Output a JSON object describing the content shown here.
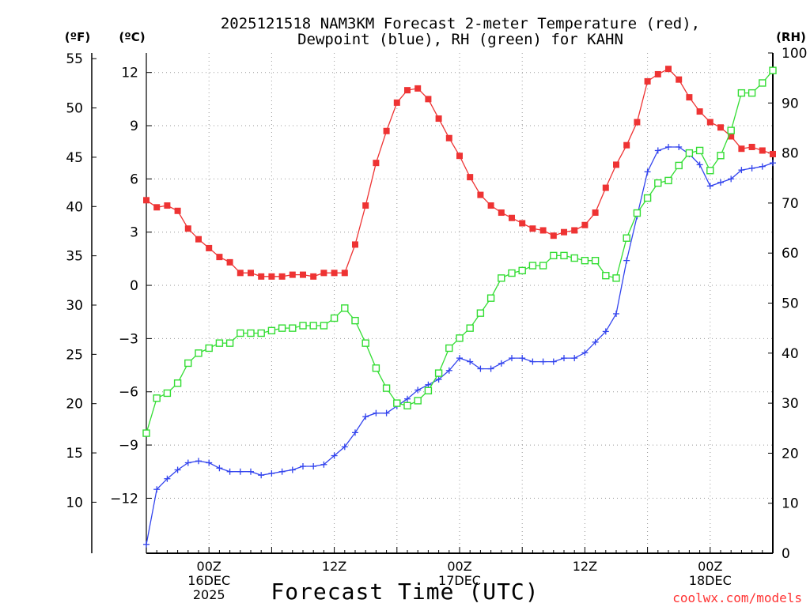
{
  "chart_data": {
    "type": "line",
    "title": [
      "2025121518 NAM3KM Forecast 2-meter Temperature (red),",
      "Dewpoint (blue), RH (green) for KAHN"
    ],
    "xlabel": "Forecast Time (UTC)",
    "credit": "coolwx.com/models",
    "units": {
      "fahrenheit": "(ºF)",
      "celsius": "(ºC)",
      "rh": "(RH)"
    },
    "x_range_hours": [
      18,
      78
    ],
    "celsius_axis": {
      "ylim": [
        -15.1,
        13.1
      ],
      "ticks": [
        -12,
        -9,
        -6,
        -3,
        0,
        3,
        6,
        9,
        12
      ],
      "labels": [
        "−12",
        "−9",
        "−6",
        "−3",
        "0",
        "3",
        "6",
        "9",
        "12"
      ]
    },
    "fahrenheit_axis": {
      "ticks": [
        10,
        15,
        20,
        25,
        30,
        35,
        40,
        45,
        50,
        55
      ],
      "labels": [
        "10",
        "15",
        "20",
        "25",
        "30",
        "35",
        "40",
        "45",
        "50",
        "55"
      ]
    },
    "rh_axis": {
      "ylim": [
        0,
        100
      ],
      "ticks": [
        0,
        10,
        20,
        30,
        40,
        50,
        60,
        70,
        80,
        90,
        100
      ],
      "labels": [
        "0",
        "10",
        "20",
        "30",
        "40",
        "50",
        "60",
        "70",
        "80",
        "90",
        "100"
      ]
    },
    "x_ticks": [
      {
        "hour": 24,
        "lines": [
          "00Z",
          "16DEC",
          "2025"
        ]
      },
      {
        "hour": 36,
        "lines": [
          "12Z"
        ]
      },
      {
        "hour": 48,
        "lines": [
          "00Z",
          "17DEC"
        ]
      },
      {
        "hour": 60,
        "lines": [
          "12Z"
        ]
      },
      {
        "hour": 72,
        "lines": [
          "00Z",
          "18DEC"
        ]
      }
    ],
    "x_hours": [
      18,
      19,
      20,
      21,
      22,
      23,
      24,
      25,
      26,
      27,
      28,
      29,
      30,
      31,
      32,
      33,
      34,
      35,
      36,
      37,
      38,
      39,
      40,
      41,
      42,
      43,
      44,
      45,
      46,
      47,
      48,
      49,
      50,
      51,
      52,
      53,
      54,
      55,
      56,
      57,
      58,
      59,
      60,
      61,
      62,
      63,
      64,
      65,
      66,
      67,
      68,
      69,
      70,
      71,
      72,
      73,
      74,
      75,
      76,
      77,
      78
    ],
    "series": [
      {
        "name": "Temperature",
        "axis": "celsius",
        "color": "#ee3333",
        "marker": "filled-square",
        "values": [
          4.8,
          4.4,
          4.5,
          4.2,
          3.2,
          2.6,
          2.1,
          1.6,
          1.3,
          0.7,
          0.7,
          0.5,
          0.5,
          0.5,
          0.6,
          0.6,
          0.5,
          0.7,
          0.7,
          0.7,
          2.3,
          4.5,
          6.9,
          8.7,
          10.3,
          11.0,
          11.1,
          10.5,
          9.4,
          8.3,
          7.3,
          6.1,
          5.1,
          4.5,
          4.1,
          3.8,
          3.5,
          3.2,
          3.1,
          2.8,
          3.0,
          3.1,
          3.4,
          4.1,
          5.5,
          6.8,
          7.9,
          9.2,
          11.5,
          11.9,
          12.2,
          11.6,
          10.6,
          9.8,
          9.2,
          8.9,
          8.4,
          7.7,
          7.8,
          7.6,
          7.4
        ]
      },
      {
        "name": "Dewpoint",
        "axis": "celsius",
        "color": "#3344ee",
        "marker": "plus",
        "values": [
          -14.6,
          -11.5,
          -10.9,
          -10.4,
          -10.0,
          -9.9,
          -10.0,
          -10.3,
          -10.5,
          -10.5,
          -10.5,
          -10.7,
          -10.6,
          -10.5,
          -10.4,
          -10.2,
          -10.2,
          -10.1,
          -9.6,
          -9.1,
          -8.3,
          -7.4,
          -7.2,
          -7.2,
          -6.8,
          -6.4,
          -5.9,
          -5.6,
          -5.3,
          -4.8,
          -4.1,
          -4.3,
          -4.7,
          -4.7,
          -4.4,
          -4.1,
          -4.1,
          -4.3,
          -4.3,
          -4.3,
          -4.1,
          -4.1,
          -3.8,
          -3.2,
          -2.6,
          -1.6,
          1.4,
          3.9,
          6.4,
          7.6,
          7.8,
          7.8,
          7.4,
          6.8,
          5.6,
          5.8,
          6.0,
          6.5,
          6.6,
          6.7,
          6.9
        ]
      },
      {
        "name": "RH",
        "axis": "rh",
        "color": "#33dd33",
        "marker": "open-square",
        "values": [
          24,
          31,
          32,
          34,
          38,
          40,
          41,
          42,
          42,
          44,
          44,
          44,
          44.5,
          45,
          45,
          45.5,
          45.5,
          45.5,
          47,
          49,
          46.5,
          42,
          37,
          33,
          30,
          29.5,
          30.5,
          32.5,
          36,
          41,
          43,
          45,
          48,
          51,
          55,
          56,
          56.5,
          57.5,
          57.5,
          59.5,
          59.5,
          59,
          58.5,
          58.5,
          55.5,
          55,
          63,
          68,
          71,
          74,
          74.5,
          77.5,
          80,
          80.5,
          76.5,
          79.5,
          84.5,
          92,
          92,
          94,
          96.5
        ]
      }
    ]
  }
}
